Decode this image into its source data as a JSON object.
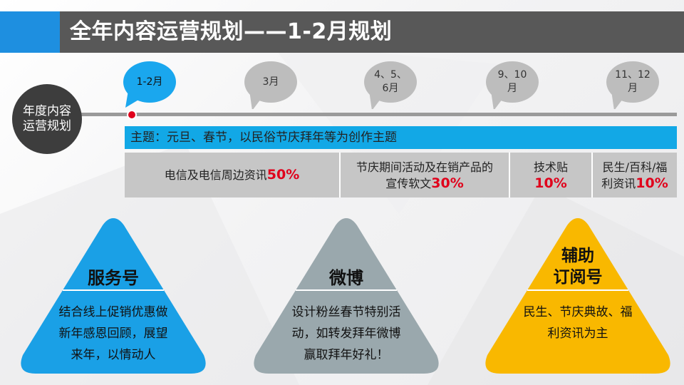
{
  "title": "全年内容运营规划——1-2月规划",
  "colors": {
    "accent_blue": "#1e8fe0",
    "header_gray": "#585858",
    "highlight_red": "#e0001b",
    "bubble_blue": "#1aa7ee",
    "bubble_gray": "#bdbdbd",
    "yellow": "#f9b800",
    "slate": "#9aa8ad"
  },
  "timeline": {
    "label_line1": "年度内容",
    "label_line2": "运营规划",
    "periods": [
      {
        "line1": "1-2月",
        "line2": "",
        "active": true
      },
      {
        "line1": "3月",
        "line2": "",
        "active": false
      },
      {
        "line1": "4、5、",
        "line2": "6月",
        "active": false
      },
      {
        "line1": "9、10",
        "line2": "月",
        "active": false
      },
      {
        "line1": "11、12",
        "line2": "月",
        "active": false
      }
    ]
  },
  "theme": "主题：元旦、春节，以民俗节庆拜年等为创作主题",
  "categories": [
    {
      "line1": "电信及电信周边资讯",
      "line2": "",
      "pct": "50%"
    },
    {
      "line1": "节庆期间活动及在销产品的",
      "line2": "宣传软文",
      "pct": "30%"
    },
    {
      "line1": "技术贴",
      "line2": "",
      "pct": "10%"
    },
    {
      "line1": "民生/百科/福",
      "line2": "利资讯",
      "pct": "10%"
    }
  ],
  "channels": [
    {
      "title1": "服务号",
      "title2": "",
      "lines": [
        "结合线上促销优惠做",
        "新年感恩回顾，展望",
        "来年，以情动人"
      ]
    },
    {
      "title1": "微博",
      "title2": "",
      "lines": [
        "设计粉丝春节特别活",
        "动，如转发拜年微博",
        "赢取拜年好礼！"
      ]
    },
    {
      "title1": "辅助",
      "title2": "订阅号",
      "lines": [
        "民生、节庆典故、福",
        "利资讯为主"
      ]
    }
  ]
}
